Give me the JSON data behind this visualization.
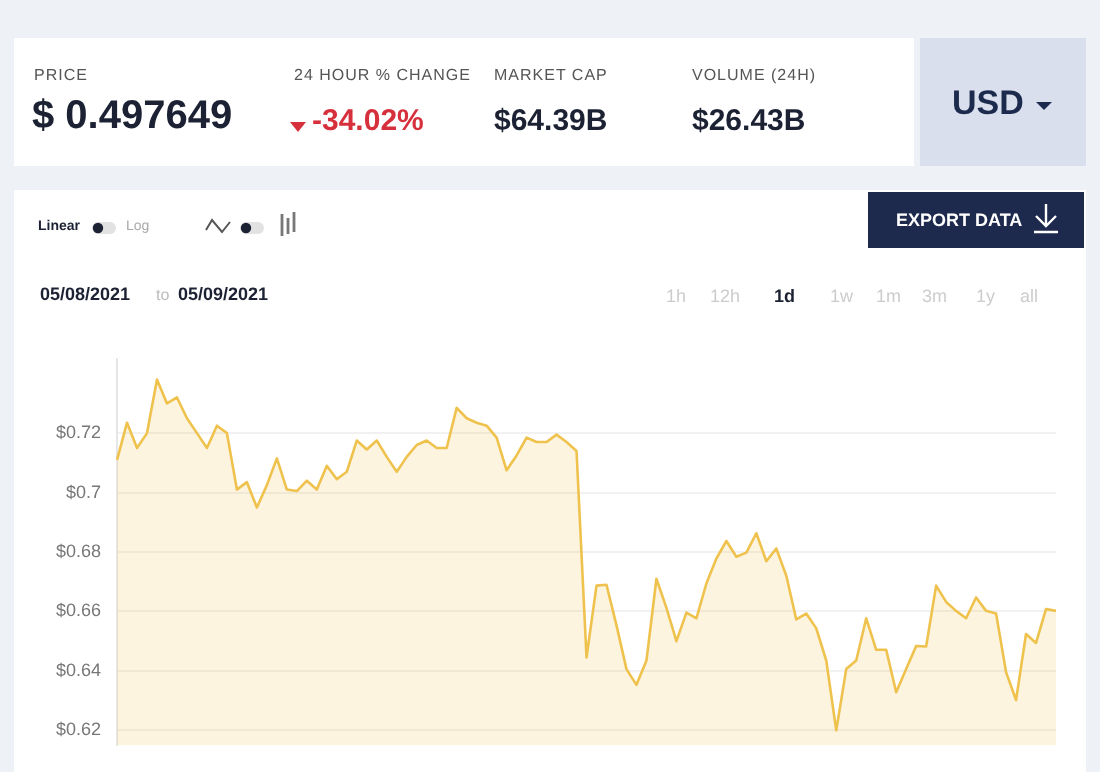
{
  "chart_data": {
    "type": "area",
    "color": "#efc24e",
    "categories": [
      null,
      null,
      null,
      null,
      null,
      null,
      null,
      null,
      null,
      null,
      null,
      null,
      null,
      null,
      null,
      null,
      null,
      null,
      null,
      null,
      null,
      null,
      null,
      null,
      null,
      null,
      null,
      null,
      null,
      null,
      null,
      null,
      null,
      null,
      null,
      null,
      null,
      null,
      null,
      null,
      null,
      null,
      null,
      null,
      null,
      null,
      null,
      null,
      null,
      null,
      null,
      null,
      null,
      null,
      null,
      null,
      null,
      null,
      null,
      null,
      null,
      null,
      null,
      null,
      null,
      null,
      null,
      null,
      null,
      null,
      null,
      null,
      null,
      null,
      null,
      null,
      null,
      null,
      null,
      null,
      null,
      null,
      null,
      null,
      null,
      null,
      null,
      null,
      null,
      null,
      null,
      null,
      null,
      null,
      null
    ],
    "values": [
      0.711,
      0.7235,
      0.715,
      0.72,
      0.738,
      0.73,
      0.732,
      0.725,
      0.72,
      0.715,
      0.7225,
      0.72,
      0.701,
      0.7035,
      0.695,
      0.7025,
      0.7115,
      0.701,
      0.7005,
      0.704,
      0.701,
      0.709,
      0.7045,
      0.707,
      0.7175,
      0.7145,
      0.7175,
      0.712,
      0.707,
      0.712,
      0.716,
      0.7175,
      0.715,
      0.715,
      0.7285,
      0.725,
      0.7235,
      0.7225,
      0.7185,
      0.7075,
      0.7125,
      0.7185,
      0.717,
      0.717,
      0.7195,
      0.717,
      0.714,
      0.6445,
      0.6687,
      0.669,
      0.6553,
      0.6406,
      0.6353,
      0.6435,
      0.671,
      0.6612,
      0.65,
      0.6596,
      0.6577,
      0.6694,
      0.6778,
      0.6837,
      0.6784,
      0.6798,
      0.6863,
      0.6769,
      0.6812,
      0.672,
      0.6573,
      0.6593,
      0.6543,
      0.6435,
      0.62,
      0.6406,
      0.6435,
      0.6577,
      0.6471,
      0.6471,
      0.6328,
      0.6406,
      0.6484,
      0.6482,
      0.6687,
      0.6632,
      0.6602,
      0.6577,
      0.6647,
      0.6602,
      0.6593,
      0.6396,
      0.6302,
      0.6524,
      0.6494,
      0.6608,
      0.6602
    ],
    "ylim": [
      0.615,
      0.745
    ],
    "yticks": [
      {
        "value": 0.62,
        "label": "$0.62"
      },
      {
        "value": 0.64,
        "label": "$0.64"
      },
      {
        "value": 0.66,
        "label": "$0.66"
      },
      {
        "value": 0.68,
        "label": "$0.68"
      },
      {
        "value": 0.7,
        "label": "$0.7"
      },
      {
        "value": 0.72,
        "label": "$0.72"
      }
    ],
    "grid": "y",
    "tick_labels": "y",
    "legend": false,
    "marker": "none",
    "line_style": "solid",
    "annotations": [
      "PRICE",
      "$ 0.497649",
      "24 HOUR % CHANGE",
      "-34.02%",
      "MARKET CAP",
      "$64.39B",
      "VOLUME (24H)",
      "$26.43B",
      "USD",
      "Linear",
      "Log",
      "EXPORT DATA",
      "05/08/2021",
      "to",
      "05/09/2021",
      "1h",
      "12h",
      "1d",
      "1w",
      "1m",
      "3m",
      "1y",
      "all"
    ]
  }
}
